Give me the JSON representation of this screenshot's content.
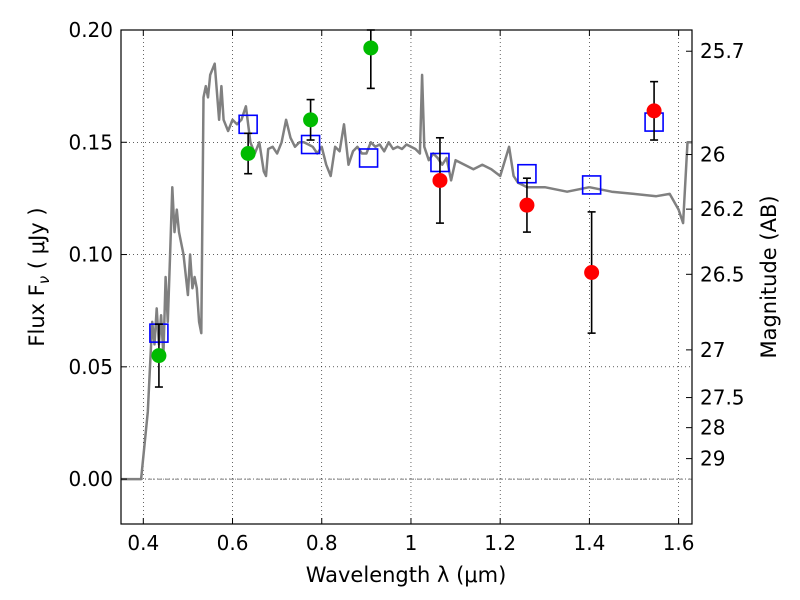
{
  "chart_data": {
    "type": "scatter",
    "xlabel": "Wavelength  λ (μm)",
    "ylabel": "Flux  F",
    "ylabel_sub": "ν",
    "ylabel_unit": "  ( μJy )",
    "y2label": "Magnitude (AB)",
    "xlim": [
      0.35,
      1.63
    ],
    "ylim": [
      -0.02,
      0.2
    ],
    "grid": true,
    "x_ticks": [
      0.4,
      0.6,
      0.8,
      1.0,
      1.2,
      1.4,
      1.6
    ],
    "x_tick_labels": [
      "0.4",
      "0.6",
      "0.8",
      "1",
      "1.2",
      "1.4",
      "1.6"
    ],
    "y_ticks": [
      0.0,
      0.05,
      0.1,
      0.15,
      0.2
    ],
    "y_tick_labels": [
      "0.00",
      "0.05",
      "0.10",
      "0.15",
      "0.20"
    ],
    "y2_ticks": [
      {
        "label": "25.7",
        "value": 25.7
      },
      {
        "label": "26",
        "value": 26.0
      },
      {
        "label": "26.2",
        "value": 26.2
      },
      {
        "label": "26.5",
        "value": 26.5
      },
      {
        "label": "27",
        "value": 27.0
      },
      {
        "label": "27.5",
        "value": 27.5
      },
      {
        "label": "28",
        "value": 28.0
      },
      {
        "label": "29",
        "value": 29.0
      }
    ],
    "series": [
      {
        "kind": "line",
        "color": "#808080",
        "x": [
          0.35,
          0.395,
          0.41,
          0.42,
          0.425,
          0.43,
          0.435,
          0.44,
          0.445,
          0.45,
          0.455,
          0.46,
          0.465,
          0.47,
          0.475,
          0.48,
          0.49,
          0.5,
          0.505,
          0.51,
          0.515,
          0.52,
          0.525,
          0.53,
          0.535,
          0.54,
          0.545,
          0.55,
          0.56,
          0.57,
          0.575,
          0.58,
          0.59,
          0.6,
          0.61,
          0.62,
          0.63,
          0.64,
          0.65,
          0.66,
          0.67,
          0.675,
          0.68,
          0.69,
          0.7,
          0.71,
          0.72,
          0.73,
          0.74,
          0.75,
          0.76,
          0.77,
          0.78,
          0.79,
          0.8,
          0.81,
          0.82,
          0.83,
          0.84,
          0.85,
          0.86,
          0.87,
          0.88,
          0.89,
          0.9,
          0.91,
          0.92,
          0.93,
          0.94,
          0.95,
          0.96,
          0.97,
          0.98,
          0.99,
          1.0,
          1.01,
          1.02,
          1.025,
          1.03,
          1.04,
          1.05,
          1.06,
          1.07,
          1.08,
          1.09,
          1.1,
          1.12,
          1.14,
          1.16,
          1.18,
          1.2,
          1.22,
          1.23,
          1.24,
          1.25,
          1.26,
          1.3,
          1.35,
          1.4,
          1.45,
          1.5,
          1.55,
          1.58,
          1.6,
          1.61,
          1.62,
          1.63
        ],
        "y": [
          0.0,
          0.0,
          0.03,
          0.07,
          0.06,
          0.076,
          0.06,
          0.073,
          0.055,
          0.09,
          0.07,
          0.1,
          0.13,
          0.11,
          0.12,
          0.11,
          0.1,
          0.082,
          0.1,
          0.085,
          0.09,
          0.085,
          0.07,
          0.065,
          0.17,
          0.175,
          0.17,
          0.18,
          0.185,
          0.16,
          0.175,
          0.16,
          0.155,
          0.16,
          0.158,
          0.16,
          0.166,
          0.15,
          0.145,
          0.15,
          0.137,
          0.135,
          0.147,
          0.148,
          0.145,
          0.15,
          0.16,
          0.152,
          0.148,
          0.15,
          0.15,
          0.149,
          0.148,
          0.145,
          0.148,
          0.14,
          0.135,
          0.148,
          0.146,
          0.158,
          0.14,
          0.146,
          0.148,
          0.145,
          0.145,
          0.15,
          0.148,
          0.149,
          0.146,
          0.15,
          0.147,
          0.148,
          0.147,
          0.149,
          0.148,
          0.147,
          0.145,
          0.18,
          0.148,
          0.142,
          0.145,
          0.143,
          0.14,
          0.143,
          0.133,
          0.142,
          0.14,
          0.138,
          0.14,
          0.138,
          0.135,
          0.148,
          0.135,
          0.132,
          0.131,
          0.13,
          0.13,
          0.128,
          0.13,
          0.128,
          0.127,
          0.126,
          0.127,
          0.12,
          0.114,
          0.15,
          0.15
        ]
      },
      {
        "kind": "model-square",
        "color": "#0000ff",
        "x": [
          0.435,
          0.635,
          0.775,
          0.905,
          1.065,
          1.26,
          1.405,
          1.545
        ],
        "y": [
          0.065,
          0.158,
          0.149,
          0.143,
          0.141,
          0.136,
          0.131,
          0.159
        ]
      },
      {
        "kind": "obs-green",
        "color": "#00bb00",
        "x": [
          0.435,
          0.635,
          0.775,
          0.91
        ],
        "y": [
          0.055,
          0.145,
          0.16,
          0.192
        ],
        "yerr": [
          0.014,
          0.009,
          0.009,
          0.018
        ]
      },
      {
        "kind": "obs-red",
        "color": "#ff0000",
        "x": [
          1.065,
          1.26,
          1.405,
          1.545
        ],
        "y": [
          0.133,
          0.122,
          0.092,
          0.164
        ],
        "yerr": [
          0.019,
          0.012,
          0.027,
          0.013
        ]
      }
    ]
  }
}
